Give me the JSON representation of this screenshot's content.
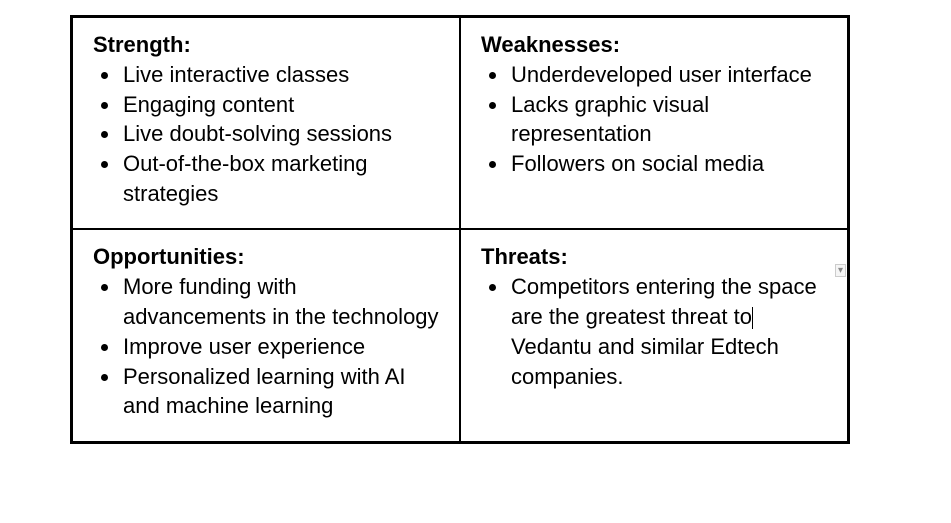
{
  "swot": {
    "strength": {
      "heading": "Strength:",
      "items": [
        "Live interactive classes",
        "Engaging content",
        "Live doubt-solving sessions",
        "Out-of-the-box marketing strategies"
      ]
    },
    "weaknesses": {
      "heading": "Weaknesses:",
      "items": [
        "Underdeveloped user interface",
        "Lacks graphic visual representation",
        "Followers on social media"
      ]
    },
    "opportunities": {
      "heading": "Opportunities:",
      "items": [
        "More funding with advancements in the technology",
        "Improve user experience",
        "Personalized learning with AI and machine learning"
      ]
    },
    "threats": {
      "heading": "Threats:",
      "items": [
        "Competitors entering the space are the greatest threat to Vedantu and similar Edtech companies."
      ],
      "item_prefix": "Competitors entering the space are the greatest threat to",
      "item_suffix": "Vedantu and similar Edtech companies."
    }
  },
  "style": {
    "type": "table",
    "columns": 2,
    "rows": 2,
    "border_color": "#000000",
    "background_color": "#ffffff",
    "text_color": "#000000",
    "heading_fontsize": 22,
    "body_fontsize": 22,
    "heading_fontweight": "bold",
    "font_family": "Arial"
  },
  "marker": {
    "symbol": "▾"
  }
}
